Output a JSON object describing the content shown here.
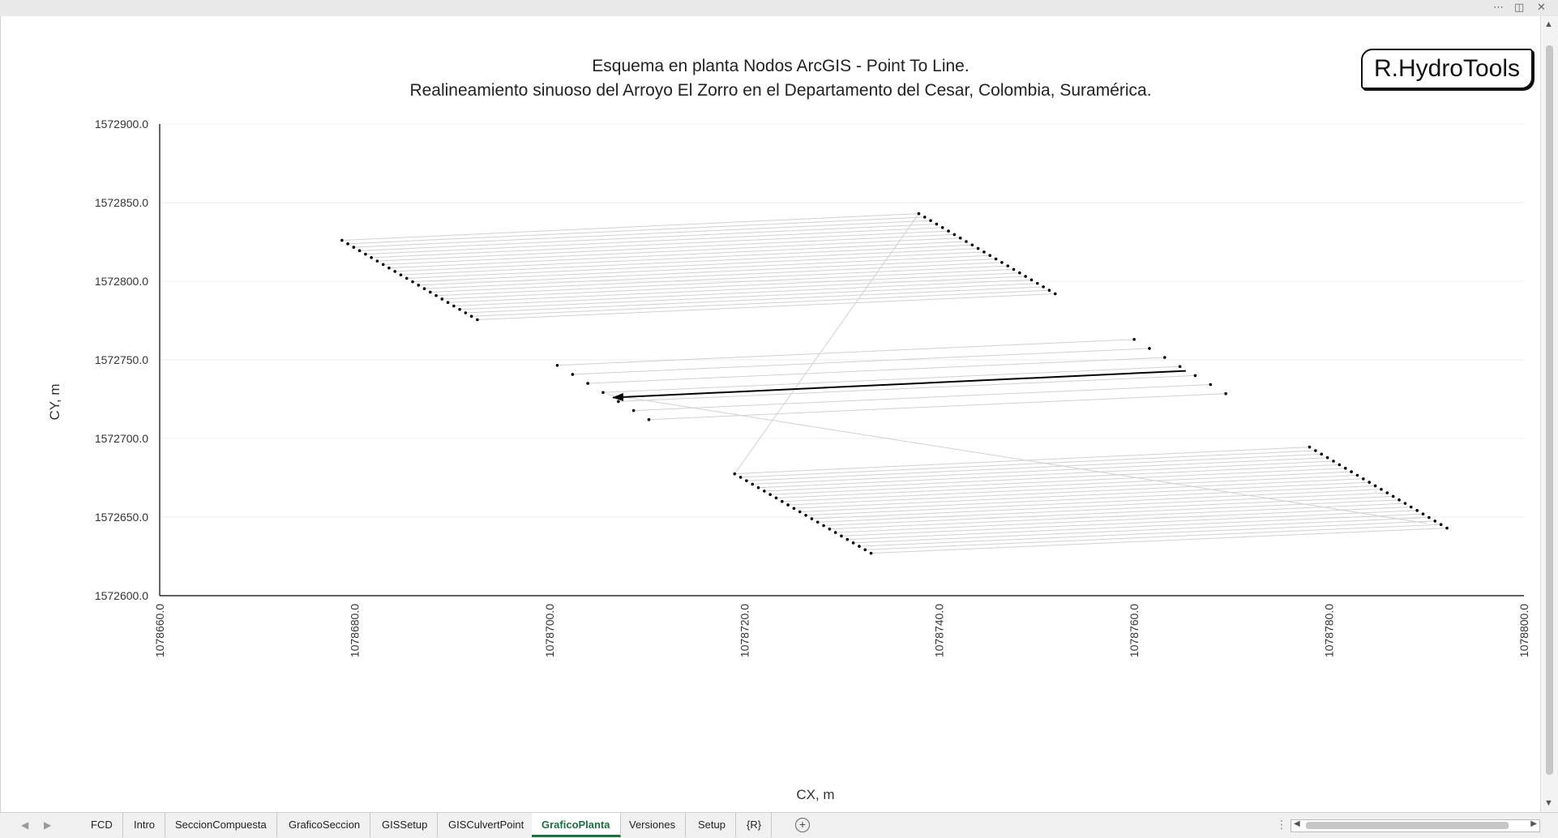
{
  "window": {
    "more_icon": "more-horizontal-icon",
    "restore_icon": "restore-icon",
    "close_icon": "close-icon"
  },
  "logo_text": "R.HydroTools",
  "chart_data": {
    "type": "line",
    "title": "Esquema en planta Nodos ArcGIS - Point To Line.",
    "subtitle": "Realineamiento sinuoso del Arroyo El Zorro en el Departamento del Cesar, Colombia, Suramérica.",
    "xlabel": "CX, m",
    "ylabel": "CY, m",
    "xlim": [
      1078660.0,
      1078800.0
    ],
    "ylim": [
      1572600.0,
      1572900.0
    ],
    "xticks": [
      "1078660.0",
      "1078680.0",
      "1078700.0",
      "1078720.0",
      "1078740.0",
      "1078760.0",
      "1078780.0",
      "1078800.0"
    ],
    "yticks": [
      "1572600.0",
      "1572650.0",
      "1572700.0",
      "1572750.0",
      "1572800.0",
      "1572850.0",
      "1572900.0"
    ],
    "grid": true,
    "legend": "none",
    "line_color": "#d0d0d0",
    "point_color": "#000000",
    "series": [
      {
        "left_edge": [
          [
            1078678.7,
            1572826.0
          ],
          [
            1078692.6,
            1572775.5
          ]
        ],
        "right_edge": [
          [
            1078737.9,
            1572843.0
          ],
          [
            1078751.9,
            1572792.0
          ]
        ],
        "count": 24
      },
      {
        "left_edge": [
          [
            1078700.8,
            1572746.5
          ],
          [
            1078710.2,
            1572712.0
          ]
        ],
        "right_edge": [
          [
            1078760.0,
            1572763.0
          ],
          [
            1078769.4,
            1572728.5
          ]
        ],
        "count": 7
      },
      {
        "left_edge": [
          [
            1078719.0,
            1572677.5
          ],
          [
            1078733.0,
            1572627.0
          ]
        ],
        "right_edge": [
          [
            1078778.0,
            1572694.5
          ],
          [
            1078792.1,
            1572643.0
          ]
        ],
        "count": 24
      }
    ],
    "connectors": [
      [
        [
          1078737.9,
          1572843.0
        ],
        [
          1078719.0,
          1572677.5
        ]
      ],
      [
        [
          1078706.0,
          1572728.0
        ],
        [
          1078790.0,
          1572646.0
        ]
      ]
    ],
    "arrow": {
      "from": [
        1078765.3,
        1572743.0
      ],
      "to": [
        1078706.5,
        1572726.0
      ],
      "color": "#000000"
    }
  },
  "tabs": {
    "nav_prev_icon": "chevron-left-icon",
    "nav_next_icon": "chevron-right-icon",
    "items": [
      "FCD",
      "Intro",
      "SeccionCompuesta",
      "GraficoSeccion",
      "GISSetup",
      "GISCulvertPoint",
      "GraficoPlanta",
      "Versiones",
      "Setup",
      "{R}"
    ],
    "active": "GraficoPlanta",
    "add_icon": "plus-circle-icon"
  }
}
